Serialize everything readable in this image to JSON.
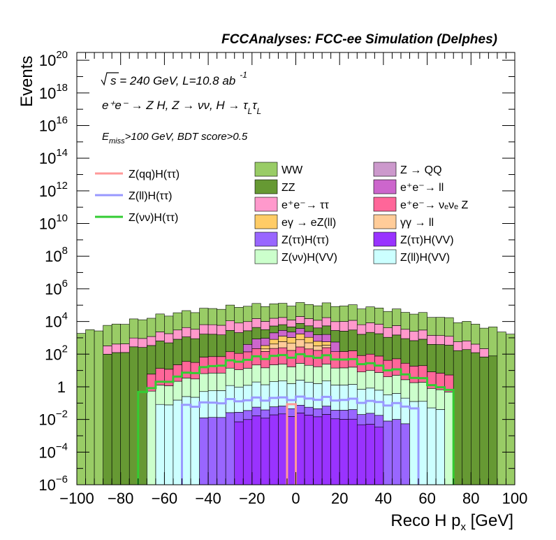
{
  "chart_data": {
    "type": "histogram-stacked",
    "title": "FCCAnalyses: FCC-ee Simulation (Delphes)",
    "xlabel": "Reco H p",
    "xlabel_sub": "x",
    "xlabel_unit": "[GeV]",
    "ylabel": "Events",
    "xlim": [
      -100,
      100
    ],
    "ylim": [
      1e-06,
      3e+20
    ],
    "yscale": "log",
    "bin_width": 4,
    "x_ticks": [
      "−100",
      "−80",
      "−60",
      "−40",
      "−20",
      "0",
      "20",
      "40",
      "60",
      "80",
      "100"
    ],
    "y_ticks": [
      {
        "base": "10",
        "exp": "−6",
        "value": 1e-06
      },
      {
        "base": "10",
        "exp": "−4",
        "value": 0.0001
      },
      {
        "base": "10",
        "exp": "−2",
        "value": 0.01
      },
      {
        "base": "1",
        "exp": "",
        "value": 1
      },
      {
        "base": "10",
        "exp": "2",
        "value": 100.0
      },
      {
        "base": "10",
        "exp": "4",
        "value": 10000.0
      },
      {
        "base": "10",
        "exp": "6",
        "value": 1000000.0
      },
      {
        "base": "10",
        "exp": "8",
        "value": 100000000.0
      },
      {
        "base": "10",
        "exp": "10",
        "value": 10000000000.0
      },
      {
        "base": "10",
        "exp": "12",
        "value": 1000000000000.0
      },
      {
        "base": "10",
        "exp": "14",
        "value": 100000000000000.0
      },
      {
        "base": "10",
        "exp": "16",
        "value": 1e+16
      },
      {
        "base": "10",
        "exp": "18",
        "value": 1e+18
      },
      {
        "base": "10",
        "exp": "20",
        "value": 1e+20
      }
    ],
    "annotations": {
      "sqrt_s": "s = 240 GeV, L=10.8 ab",
      "lumi_exp": "-1",
      "process": "e⁺e⁻ → Z H, Z  → νν, H  → τ",
      "process_sub1": "L",
      "process_tau2": "τ",
      "process_sub2": "L",
      "cuts_E": "E",
      "cuts_sub": "miss",
      "cuts_rest": ">100 GeV, BDT score>0.5"
    },
    "legend_position": "upper plot area, three columns",
    "signal_lines": [
      {
        "name": "Z(qq)H(ττ)",
        "color": "#ff9999"
      },
      {
        "name": "Z(ll)H(ττ)",
        "color": "#9999ff"
      },
      {
        "name": "Z(νν)H(ττ)",
        "color": "#33cc33"
      }
    ],
    "stack_legend": [
      {
        "name": "WW",
        "color": "#99cc66"
      },
      {
        "name": "ZZ",
        "color": "#669933"
      },
      {
        "name": "e⁺e⁻→ ττ",
        "color": "#ff99cc"
      },
      {
        "name": "eγ → eZ(ll)",
        "color": "#ffcc66"
      },
      {
        "name": "Z(ττ)H(ττ)",
        "color": "#9966ff"
      },
      {
        "name": "Z(νν)H(VV)",
        "color": "#ccffcc"
      },
      {
        "name": "Z → QQ",
        "color": "#cc99cc"
      },
      {
        "name": "e⁺e⁻→ ll",
        "color": "#cc66cc"
      },
      {
        "name": "e⁺e⁻→ νₑνₑ Z",
        "color": "#ff6699"
      },
      {
        "name": "γγ → ll",
        "color": "#ffcc99"
      },
      {
        "name": "Z(ττ)H(VV)",
        "color": "#9933ff"
      },
      {
        "name": "Z(ll)H(VV)",
        "color": "#ccffff"
      }
    ],
    "stack_layers_bottom_to_top": [
      {
        "name": "Z(ττ)H(VV)",
        "color": "#9933ff",
        "range": [
          -28,
          40
        ],
        "plateau_log10": -1.7
      },
      {
        "name": "Z(ττ)H(ττ)",
        "color": "#9966ff",
        "range": [
          -44,
          52
        ],
        "plateau_log10": -1.4
      },
      {
        "name": "Z(ll)H(VV)",
        "color": "#ccffff",
        "range": [
          -64,
          68
        ],
        "plateau_log10": 0.3
      },
      {
        "name": "Z(νν)H(VV)",
        "color": "#ccffcc",
        "range": [
          -68,
          72
        ],
        "plateau_log10": 1.3
      },
      {
        "name": "e⁺e⁻→ νₑνₑ Z",
        "color": "#ff6699",
        "range": [
          -68,
          72
        ],
        "plateau_log10": 2.3
      },
      {
        "name": "γγ → ll",
        "color": "#ffcc99",
        "range": [
          -16,
          16
        ],
        "plateau_log10": 2.6
      },
      {
        "name": "eγ → eZ(ll)",
        "color": "#ffcc66",
        "range": [
          -16,
          16
        ],
        "plateau_log10": 2.9
      },
      {
        "name": "e⁺e⁻→ ll",
        "color": "#cc66cc",
        "range": [
          -24,
          20
        ],
        "plateau_log10": 3.2
      },
      {
        "name": "Z → QQ",
        "color": "#cc99cc",
        "range": [
          -4,
          4
        ],
        "plateau_log10": 1.4
      },
      {
        "name": "ZZ",
        "color": "#669933",
        "range": [
          -88,
          92
        ],
        "plateau_log10": 3.5
      },
      {
        "name": "e⁺e⁻→ ττ",
        "color": "#ff99cc",
        "range": [
          -88,
          88
        ],
        "plateau_log10": 4.0
      },
      {
        "name": "WW",
        "color": "#99cc66",
        "range": [
          -100,
          100
        ],
        "plateau_log10": 5.0
      }
    ],
    "signal_line_shapes": [
      {
        "name": "Z(νν)H(ττ)",
        "range": [
          -72,
          72
        ],
        "plateau_log10": 1.9
      },
      {
        "name": "Z(ll)H(ττ)",
        "range": [
          -52,
          56
        ],
        "plateau_log10": -0.7
      },
      {
        "name": "Z(qq)H(ττ)",
        "range": [
          -4,
          0
        ],
        "plateau_log10": -0.8
      }
    ]
  }
}
